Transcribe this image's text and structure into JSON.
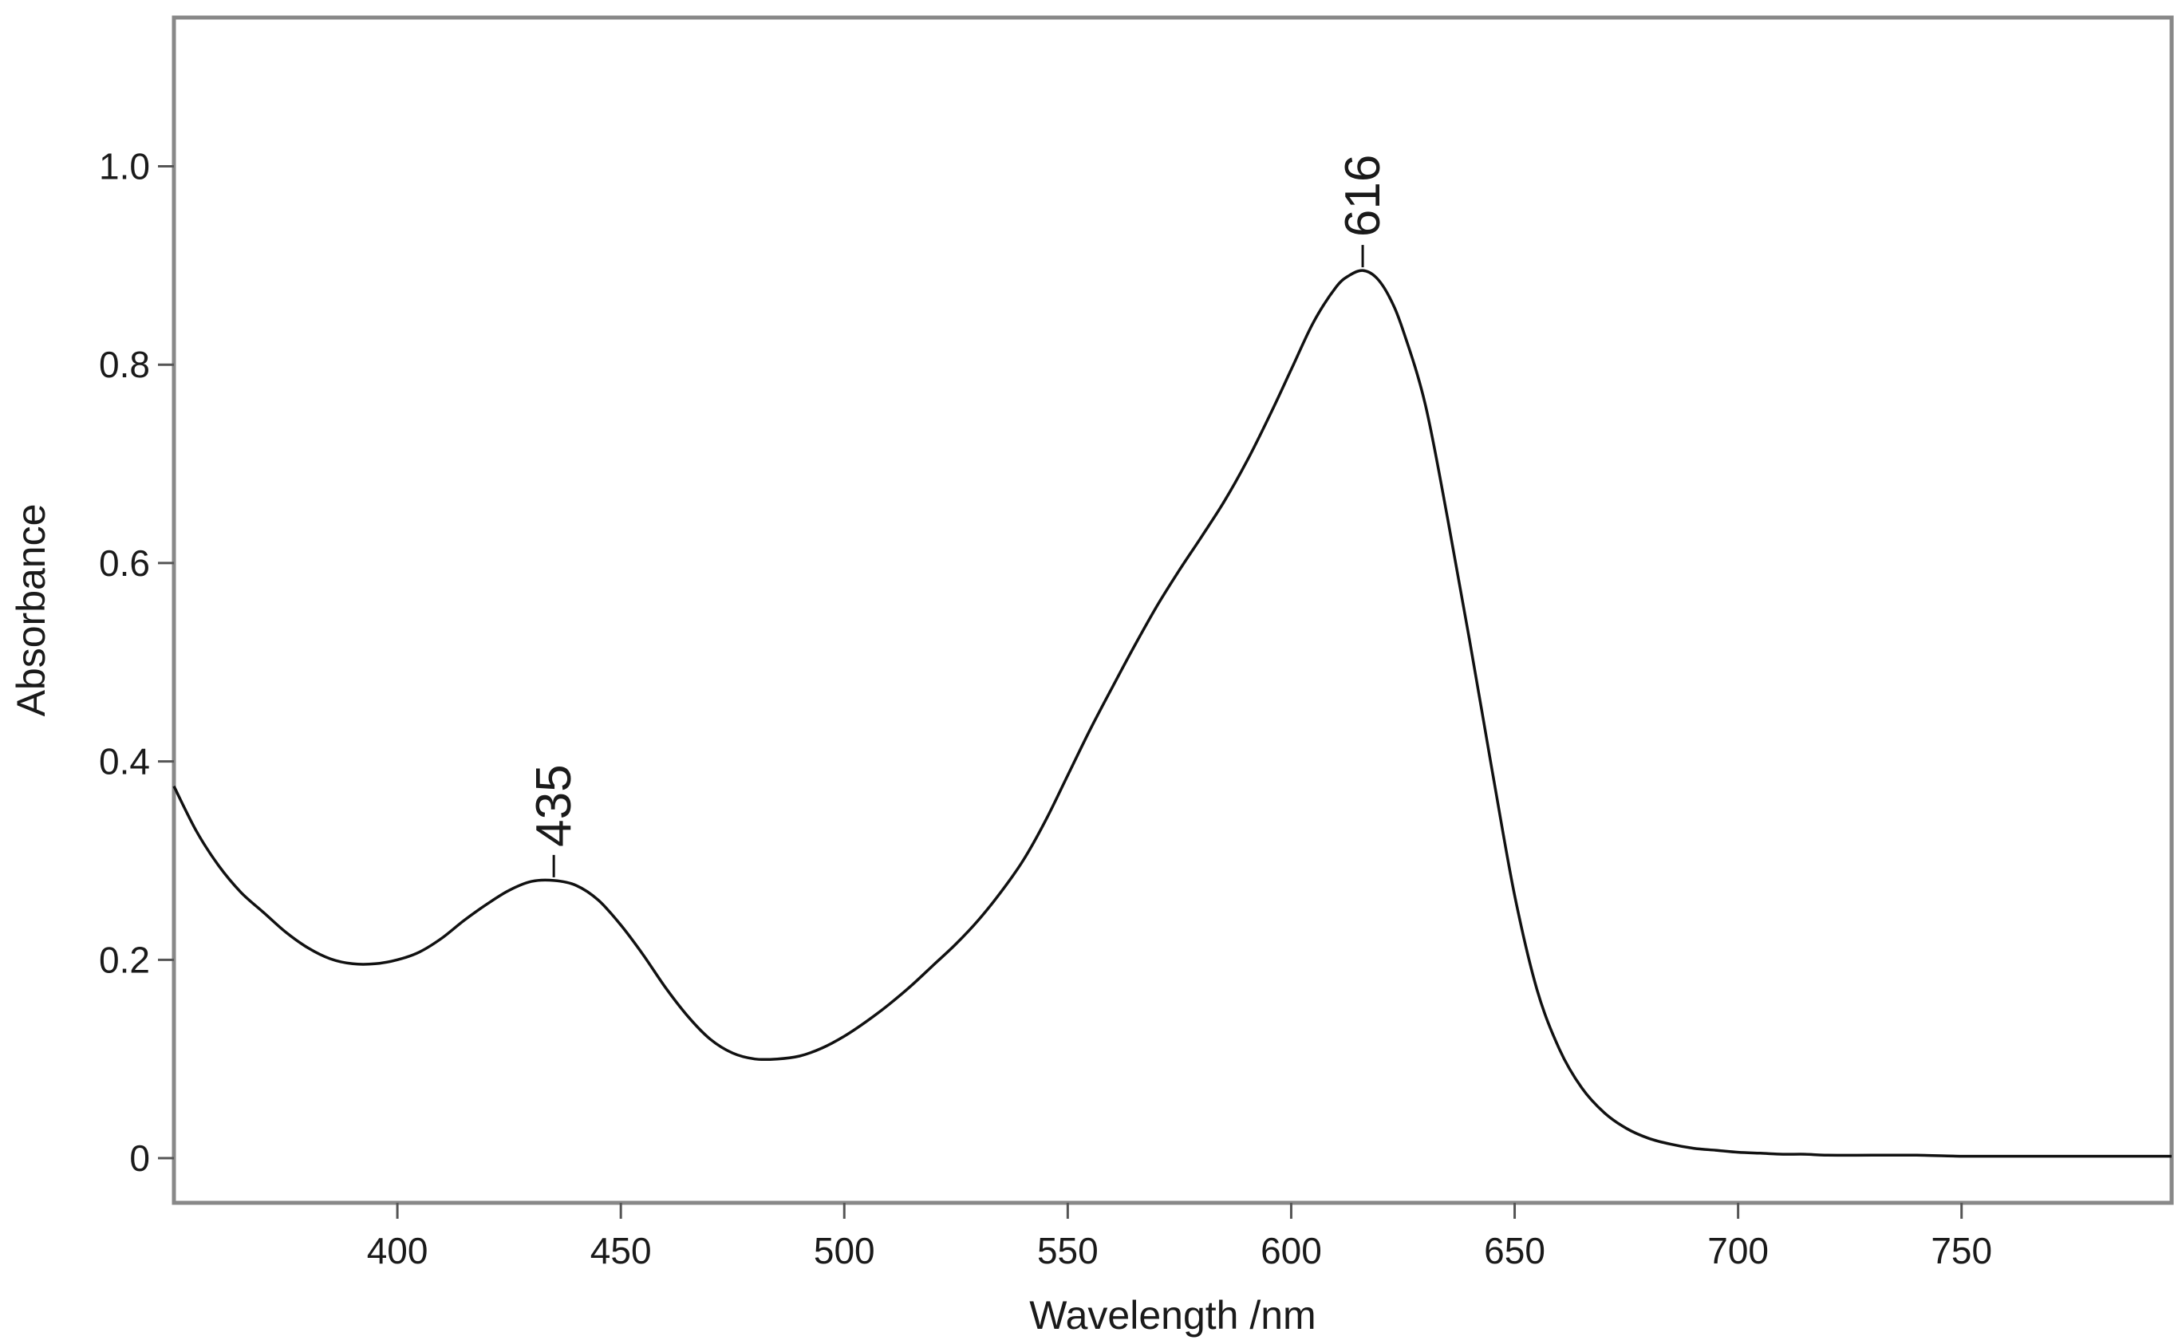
{
  "chart_data": {
    "type": "line",
    "title": "",
    "xlabel": "Wavelength /nm",
    "ylabel": "Absorbance",
    "xlim": [
      350,
      797
    ],
    "ylim": [
      -0.045,
      1.15
    ],
    "grid": false,
    "legend": "none",
    "x_ticks": [
      {
        "value": 400,
        "label": "400"
      },
      {
        "value": 450,
        "label": "450"
      },
      {
        "value": 500,
        "label": "500"
      },
      {
        "value": 550,
        "label": "550"
      },
      {
        "value": 600,
        "label": "600"
      },
      {
        "value": 650,
        "label": "650"
      },
      {
        "value": 700,
        "label": "700"
      },
      {
        "value": 750,
        "label": "750"
      }
    ],
    "y_ticks": [
      {
        "value": 0,
        "label": "0"
      },
      {
        "value": 0.2,
        "label": "0.2"
      },
      {
        "value": 0.4,
        "label": "0.4"
      },
      {
        "value": 0.6,
        "label": "0.6"
      },
      {
        "value": 0.8,
        "label": "0.8"
      },
      {
        "value": 1.0,
        "label": "1.0"
      }
    ],
    "peaks": [
      {
        "x": 435,
        "y": 0.28,
        "label": "435"
      },
      {
        "x": 616,
        "y": 0.895,
        "label": "616"
      }
    ],
    "line_color": "#111111",
    "frame_color": "#888888",
    "series": [
      {
        "x": [
          350,
          355,
          360,
          365,
          370,
          375,
          380,
          385,
          390,
          395,
          400,
          405,
          410,
          415,
          420,
          425,
          430,
          435,
          440,
          445,
          450,
          455,
          460,
          465,
          470,
          475,
          480,
          485,
          490,
          495,
          500,
          505,
          510,
          515,
          520,
          525,
          530,
          535,
          540,
          545,
          550,
          555,
          560,
          565,
          570,
          575,
          580,
          585,
          590,
          595,
          600,
          605,
          610,
          613,
          616,
          619,
          622,
          625,
          630,
          635,
          640,
          645,
          650,
          655,
          660,
          665,
          670,
          675,
          680,
          685,
          690,
          695,
          700,
          705,
          710,
          715,
          720,
          730,
          740,
          750,
          760,
          770,
          780,
          790,
          797
        ],
        "y": [
          0.375,
          0.33,
          0.295,
          0.268,
          0.248,
          0.228,
          0.212,
          0.201,
          0.196,
          0.196,
          0.2,
          0.208,
          0.222,
          0.24,
          0.256,
          0.27,
          0.279,
          0.28,
          0.275,
          0.26,
          0.235,
          0.205,
          0.172,
          0.143,
          0.12,
          0.106,
          0.1,
          0.1,
          0.103,
          0.111,
          0.123,
          0.138,
          0.155,
          0.174,
          0.195,
          0.216,
          0.24,
          0.268,
          0.3,
          0.34,
          0.386,
          0.432,
          0.475,
          0.517,
          0.557,
          0.593,
          0.627,
          0.662,
          0.702,
          0.747,
          0.795,
          0.843,
          0.878,
          0.89,
          0.895,
          0.888,
          0.868,
          0.835,
          0.76,
          0.645,
          0.52,
          0.39,
          0.265,
          0.17,
          0.11,
          0.071,
          0.046,
          0.03,
          0.02,
          0.014,
          0.01,
          0.008,
          0.006,
          0.005,
          0.004,
          0.004,
          0.003,
          0.003,
          0.003,
          0.002,
          0.002,
          0.002,
          0.002,
          0.002,
          0.002
        ]
      }
    ]
  }
}
